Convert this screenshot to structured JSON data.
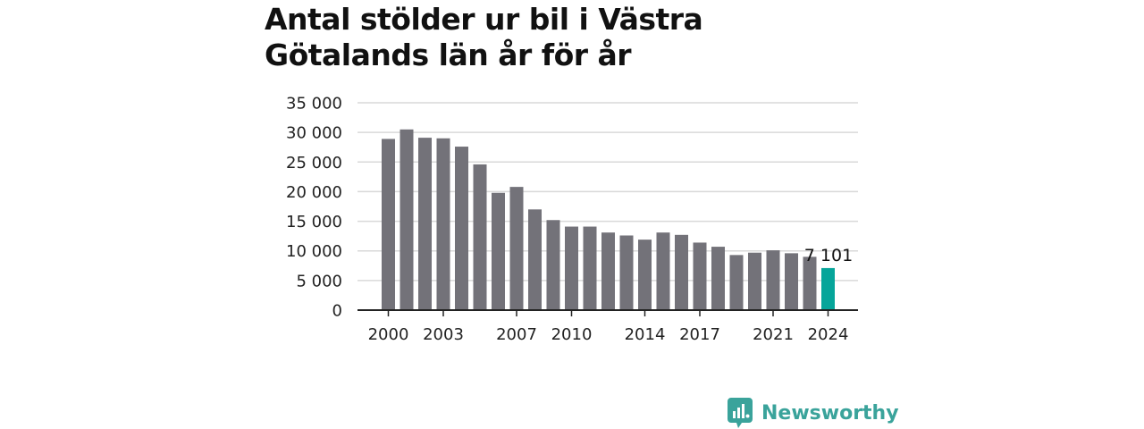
{
  "chart_data": {
    "type": "bar",
    "title": "Antal stölder ur bil i Västra Götalands län år för år",
    "xlabel": "",
    "ylabel": "",
    "ylim": [
      0,
      35000
    ],
    "yticks": [
      0,
      5000,
      10000,
      15000,
      20000,
      25000,
      30000,
      35000
    ],
    "ytick_labels": [
      "0",
      "5 000",
      "10 000",
      "15 000",
      "20 000",
      "25 000",
      "30 000",
      "35 000"
    ],
    "categories": [
      "2000",
      "2001",
      "2002",
      "2003",
      "2004",
      "2005",
      "2006",
      "2007",
      "2008",
      "2009",
      "2010",
      "2011",
      "2012",
      "2013",
      "2014",
      "2015",
      "2016",
      "2017",
      "2018",
      "2019",
      "2020",
      "2021",
      "2022",
      "2023",
      "2024"
    ],
    "values": [
      28900,
      30500,
      29100,
      29000,
      27600,
      24600,
      19800,
      20800,
      17000,
      15200,
      14100,
      14100,
      13100,
      12600,
      11900,
      13100,
      12700,
      11400,
      10700,
      9300,
      9700,
      10100,
      9600,
      9000,
      7101
    ],
    "xtick_labels": [
      "2000",
      "2003",
      "2007",
      "2010",
      "2014",
      "2017",
      "2021",
      "2024"
    ],
    "highlight": {
      "category": "2024",
      "label": "7 101"
    },
    "colors": {
      "bar": "#737279",
      "highlight": "#06a59a",
      "grid": "#d9d9d9",
      "axis": "#222222"
    },
    "grid": true,
    "legend": "none"
  },
  "brand": {
    "name": "Newsworthy",
    "icon": "newsworthy-logo-icon",
    "color": "#3aa39b"
  }
}
